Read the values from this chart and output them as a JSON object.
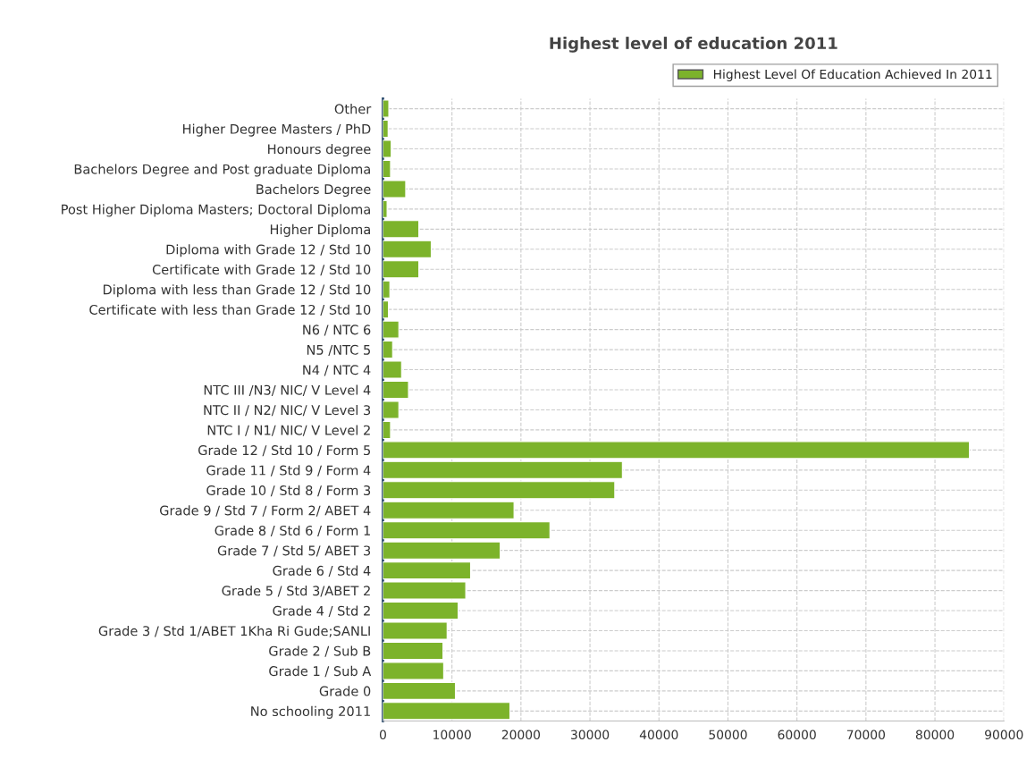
{
  "chart_data": {
    "type": "bar",
    "orientation": "horizontal",
    "title": "Highest level of education 2011",
    "categories": [
      "Other",
      "Higher Degree Masters / PhD",
      "Honours degree",
      "Bachelors Degree and Post graduate Diploma",
      "Bachelors Degree",
      "Post Higher Diploma Masters; Doctoral Diploma",
      "Higher Diploma",
      "Diploma with Grade 12 / Std 10",
      "Certificate with Grade 12 / Std 10",
      "Diploma with less than Grade 12 / Std 10",
      "Certificate with less than Grade 12 / Std 10",
      "N6 / NTC 6",
      "N5 /NTC 5",
      "N4 / NTC 4",
      "NTC III /N3/ NIC/ V Level 4",
      "NTC II / N2/ NIC/ V Level 3",
      "NTC I / N1/ NIC/ V Level 2",
      "Grade 12 / Std 10 / Form 5",
      "Grade 11 / Std 9 / Form 4",
      "Grade 10 / Std 8 / Form 3",
      "Grade 9 / Std 7 / Form 2/ ABET 4",
      "Grade 8 / Std 6 / Form 1",
      "Grade 7 / Std 5/ ABET 3",
      "Grade 6 / Std 4",
      "Grade 5 / Std 3/ABET 2",
      "Grade 4 / Std 2",
      "Grade 3 / Std 1/ABET 1Kha Ri Gude;SANLI",
      "Grade 2 / Sub B",
      "Grade 1 / Sub A",
      "Grade 0",
      "No schooling 2011"
    ],
    "series": [
      {
        "name": "Highest Level Of Education Achieved In 2011",
        "color": "#7cb32b",
        "values": [
          850,
          750,
          1200,
          1100,
          3300,
          600,
          5200,
          7000,
          5200,
          1000,
          800,
          2300,
          1400,
          2700,
          3700,
          2300,
          1100,
          85000,
          34700,
          33600,
          19000,
          24200,
          17000,
          12700,
          12000,
          10900,
          9300,
          8700,
          8800,
          10500,
          18400
        ]
      }
    ],
    "xlim": [
      0,
      90000
    ],
    "xticks": [
      0,
      10000,
      20000,
      30000,
      40000,
      50000,
      60000,
      70000,
      80000,
      90000
    ],
    "grid": true,
    "legend": "top right"
  }
}
